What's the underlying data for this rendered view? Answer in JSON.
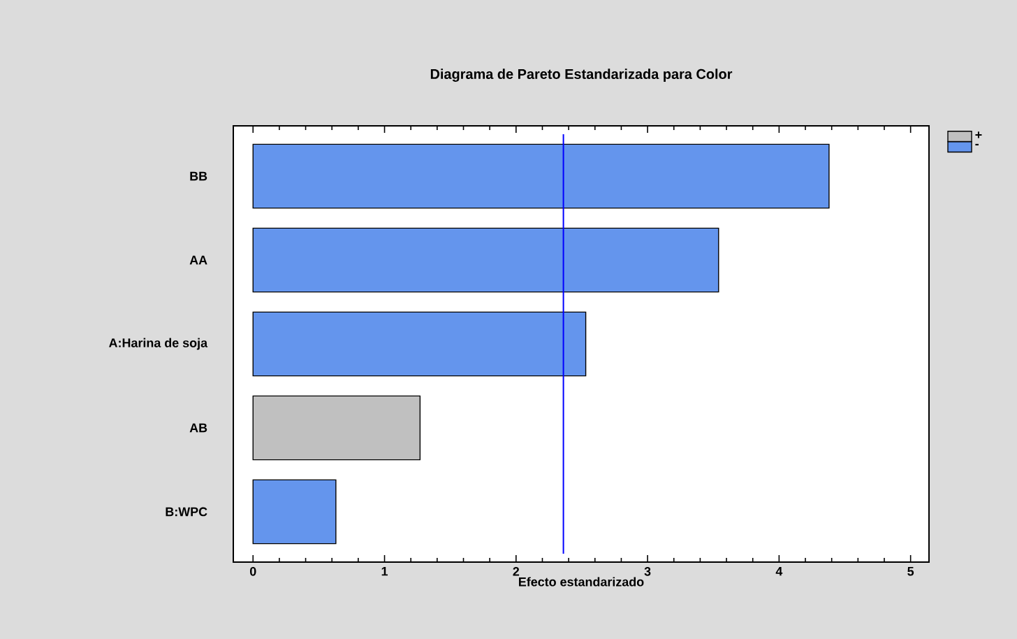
{
  "chart_data": {
    "type": "bar",
    "orientation": "horizontal",
    "title": "Diagrama de Pareto Estandarizada para Color",
    "xlabel": "Efecto estandarizado",
    "categories": [
      "BB",
      "AA",
      "A:Harina de soja",
      "AB",
      "B:WPC"
    ],
    "series": [
      {
        "name": "+",
        "color": "#c0c0c0",
        "values": [
          null,
          null,
          null,
          1.27,
          null
        ]
      },
      {
        "name": "-",
        "color": "#6495ed",
        "values": [
          4.38,
          3.54,
          2.53,
          null,
          0.63
        ]
      }
    ],
    "xlim": [
      -0.15,
      5.14
    ],
    "xticks": [
      0,
      1,
      2,
      3,
      4,
      5
    ],
    "ref_lines": [
      {
        "axis": "x",
        "value": 2.36,
        "color": "#0000ff"
      }
    ],
    "legend": "right",
    "grid": false
  }
}
